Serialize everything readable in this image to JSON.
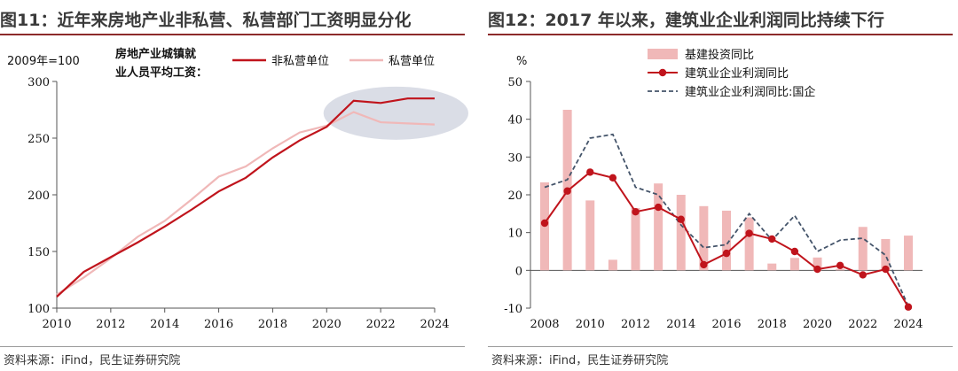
{
  "left": {
    "title": "图11：近年来房地产业非私营、私营部门工资明显分化",
    "source": "资料来源：iFind，民生证券研究院",
    "base_note": "2009年=100",
    "caption_line1": "房地产业城镇就",
    "caption_line2": "业人员平均工资：",
    "colors": {
      "nonprivate": "#c0141c",
      "private": "#f0b8b8",
      "highlight": "#cdd1dd"
    }
  },
  "right": {
    "title": "图12：2017 年以来，建筑业企业利润同比持续下行",
    "source": "资料来源：iFind，民生证券研究院",
    "unit": "%",
    "colors": {
      "bar": "#f0b8b8",
      "line": "#c0141c",
      "dashed": "#44546a"
    }
  },
  "chart_data": [
    {
      "type": "line",
      "x": [
        2010,
        2011,
        2012,
        2013,
        2014,
        2015,
        2016,
        2017,
        2018,
        2019,
        2020,
        2021,
        2022,
        2023,
        2024
      ],
      "series": [
        {
          "name": "非私营单位",
          "values": [
            110,
            132,
            145,
            158,
            172,
            187,
            203,
            215,
            233,
            248,
            260,
            283,
            281,
            285,
            285
          ]
        },
        {
          "name": "私营单位",
          "values": [
            112,
            127,
            144,
            163,
            177,
            196,
            216,
            225,
            241,
            255,
            261,
            273,
            264,
            263,
            262
          ]
        }
      ],
      "xticks": [
        "2010",
        "2012",
        "2014",
        "2016",
        "2018",
        "2020",
        "2022",
        "2024"
      ],
      "yticks": [
        "100",
        "150",
        "200",
        "250",
        "300"
      ],
      "ylim": [
        100,
        300
      ],
      "legend_position": "top-right",
      "annotation": "highlight ellipse over 2021-2024"
    },
    {
      "type": "bar",
      "x": [
        2008,
        2009,
        2010,
        2011,
        2012,
        2013,
        2014,
        2015,
        2016,
        2017,
        2018,
        2019,
        2020,
        2021,
        2022,
        2023,
        2024
      ],
      "series": [
        {
          "name": "基建投资同比",
          "kind": "bar",
          "values": [
            23.3,
            42.5,
            18.5,
            2.8,
            16.5,
            23.0,
            20.0,
            17.0,
            15.8,
            14.0,
            1.8,
            3.3,
            3.4,
            0.4,
            11.5,
            8.3,
            9.2
          ]
        },
        {
          "name": "建筑业企业利润同比",
          "kind": "line",
          "values": [
            12.5,
            21.0,
            26.0,
            24.5,
            15.5,
            16.7,
            13.5,
            1.5,
            4.5,
            9.8,
            8.3,
            5.0,
            0.3,
            1.3,
            -1.2,
            0.3,
            -9.7
          ]
        },
        {
          "name": "建筑业企业利润同比:国企",
          "kind": "dashed-line",
          "values": [
            22.0,
            24.0,
            35.0,
            36.0,
            22.0,
            20.0,
            12.0,
            6.0,
            6.8,
            15.0,
            8.0,
            14.5,
            5.0,
            8.0,
            8.5,
            4.0,
            -9.5
          ]
        }
      ],
      "xticks": [
        "2008",
        "2010",
        "2012",
        "2014",
        "2016",
        "2018",
        "2020",
        "2022",
        "2024"
      ],
      "yticks": [
        "-10",
        "0",
        "10",
        "20",
        "30",
        "40",
        "50"
      ],
      "ylim": [
        -10,
        50
      ],
      "legend_position": "top"
    }
  ]
}
